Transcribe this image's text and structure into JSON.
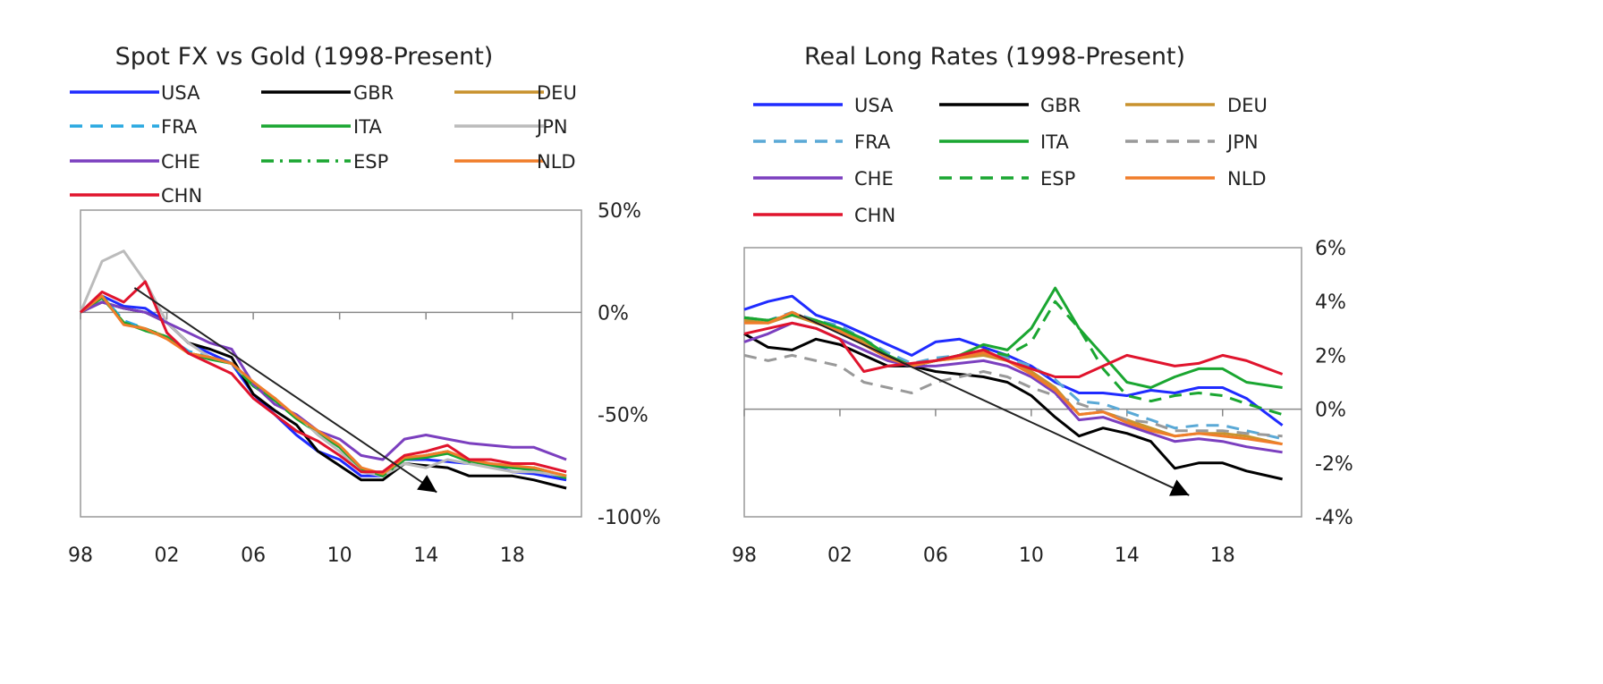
{
  "chart_data": [
    {
      "type": "line",
      "title": "Spot FX vs Gold (1998-Present)",
      "xlabel": "",
      "ylabel": "",
      "xlim": [
        1998,
        2021.2
      ],
      "ylim": [
        -100,
        50
      ],
      "x_tick_labels": [
        "98",
        "02",
        "06",
        "10",
        "14",
        "18"
      ],
      "x_tick_values": [
        1998,
        2002,
        2006,
        2010,
        2014,
        2018
      ],
      "y_tick_labels": [
        "50%",
        "0%",
        "-50%",
        "-100%"
      ],
      "y_tick_values": [
        50,
        0,
        -50,
        -100
      ],
      "legend_position": "top",
      "x": [
        1998,
        1999,
        2000,
        2001,
        2002,
        2003,
        2004,
        2005,
        2006,
        2007,
        2008,
        2009,
        2010,
        2011,
        2012,
        2013,
        2014,
        2015,
        2016,
        2017,
        2018,
        2019,
        2020.5
      ],
      "series": [
        {
          "name": "USA",
          "color": "#1f2bff",
          "style": "solid",
          "values": [
            0,
            8,
            3,
            2,
            -5,
            -15,
            -20,
            -25,
            -40,
            -50,
            -60,
            -68,
            -72,
            -80,
            -80,
            -72,
            -72,
            -73,
            -74,
            -75,
            -78,
            -79,
            -82
          ]
        },
        {
          "name": "GBR",
          "color": "#000000",
          "style": "solid",
          "values": [
            0,
            5,
            2,
            0,
            -5,
            -15,
            -18,
            -22,
            -40,
            -48,
            -55,
            -68,
            -75,
            -82,
            -82,
            -74,
            -75,
            -76,
            -80,
            -80,
            -80,
            -82,
            -86
          ]
        },
        {
          "name": "DEU",
          "color": "#c8922e",
          "style": "solid",
          "values": [
            0,
            8,
            -5,
            -8,
            -12,
            -20,
            -22,
            -25,
            -35,
            -42,
            -52,
            -58,
            -65,
            -76,
            -80,
            -72,
            -70,
            -68,
            -73,
            -74,
            -76,
            -76,
            -80
          ]
        },
        {
          "name": "FRA",
          "color": "#2aa8e0",
          "style": "dash",
          "values": [
            0,
            8,
            -4,
            -8,
            -12,
            -19,
            -22,
            -25,
            -36,
            -42,
            -52,
            -58,
            -66,
            -76,
            -80,
            -72,
            -70,
            -69,
            -73,
            -74,
            -76,
            -77,
            -80
          ]
        },
        {
          "name": "ITA",
          "color": "#1aa631",
          "style": "solid",
          "values": [
            0,
            7,
            -5,
            -9,
            -12,
            -20,
            -23,
            -25,
            -36,
            -43,
            -52,
            -59,
            -66,
            -77,
            -80,
            -72,
            -71,
            -69,
            -73,
            -75,
            -76,
            -77,
            -81
          ]
        },
        {
          "name": "JPN",
          "color": "#bbbbbb",
          "style": "solid",
          "values": [
            0,
            25,
            30,
            15,
            -5,
            -15,
            -22,
            -25,
            -35,
            -45,
            -50,
            -60,
            -68,
            -78,
            -80,
            -74,
            -76,
            -72,
            -74,
            -76,
            -78,
            -78,
            -80
          ]
        },
        {
          "name": "CHE",
          "color": "#7b3fbf",
          "style": "solid",
          "values": [
            0,
            5,
            2,
            0,
            -5,
            -10,
            -15,
            -18,
            -35,
            -45,
            -50,
            -58,
            -62,
            -70,
            -72,
            -62,
            -60,
            -62,
            -64,
            -65,
            -66,
            -66,
            -72
          ]
        },
        {
          "name": "ESP",
          "color": "#1aa631",
          "style": "dashdot",
          "values": [
            0,
            8,
            -5,
            -8,
            -12,
            -20,
            -22,
            -25,
            -35,
            -43,
            -52,
            -58,
            -65,
            -76,
            -80,
            -72,
            -70,
            -68,
            -73,
            -74,
            -76,
            -76,
            -80
          ]
        },
        {
          "name": "NLD",
          "color": "#f07d2a",
          "style": "solid",
          "values": [
            0,
            8,
            -6,
            -8,
            -13,
            -20,
            -22,
            -25,
            -34,
            -42,
            -51,
            -58,
            -65,
            -76,
            -79,
            -71,
            -70,
            -68,
            -72,
            -74,
            -75,
            -76,
            -80
          ]
        },
        {
          "name": "CHN",
          "color": "#e0142d",
          "style": "solid",
          "values": [
            0,
            10,
            5,
            15,
            -10,
            -20,
            -25,
            -30,
            -42,
            -50,
            -58,
            -63,
            -70,
            -78,
            -78,
            -70,
            -68,
            -65,
            -72,
            -72,
            -74,
            -74,
            -78
          ]
        }
      ],
      "trend_arrow": {
        "from": [
          2000.5,
          12
        ],
        "to": [
          2014.5,
          -88
        ]
      }
    },
    {
      "type": "line",
      "title": "Real Long Rates (1998-Present)",
      "xlabel": "",
      "ylabel": "",
      "xlim": [
        1998,
        2021.3
      ],
      "ylim": [
        -4,
        6
      ],
      "x_tick_labels": [
        "98",
        "02",
        "06",
        "10",
        "14",
        "18"
      ],
      "x_tick_values": [
        1998,
        2002,
        2006,
        2010,
        2014,
        2018
      ],
      "y_tick_labels": [
        "6%",
        "4%",
        "2%",
        "0%",
        "-2%",
        "-4%"
      ],
      "y_tick_values": [
        6,
        4,
        2,
        0,
        -2,
        -4
      ],
      "legend_position": "top",
      "x": [
        1998,
        1999,
        2000,
        2001,
        2002,
        2003,
        2004,
        2005,
        2006,
        2007,
        2008,
        2009,
        2010,
        2011,
        2012,
        2013,
        2014,
        2015,
        2016,
        2017,
        2018,
        2019,
        2020.5
      ],
      "series": [
        {
          "name": "USA",
          "color": "#1f2bff",
          "style": "solid",
          "values": [
            3.7,
            4.0,
            4.2,
            3.5,
            3.2,
            2.8,
            2.4,
            2.0,
            2.5,
            2.6,
            2.3,
            2.0,
            1.6,
            1.0,
            0.6,
            0.6,
            0.5,
            0.7,
            0.6,
            0.8,
            0.8,
            0.4,
            -0.6
          ]
        },
        {
          "name": "GBR",
          "color": "#000000",
          "style": "solid",
          "values": [
            2.8,
            2.3,
            2.2,
            2.6,
            2.4,
            2.0,
            1.6,
            1.6,
            1.4,
            1.3,
            1.2,
            1.0,
            0.5,
            -0.3,
            -1.0,
            -0.7,
            -0.9,
            -1.2,
            -2.2,
            -2.0,
            -2.0,
            -2.3,
            -2.6
          ]
        },
        {
          "name": "DEU",
          "color": "#c8922e",
          "style": "solid",
          "values": [
            3.3,
            3.2,
            3.5,
            3.2,
            3.0,
            2.5,
            2.0,
            1.6,
            1.8,
            1.9,
            2.0,
            1.8,
            1.4,
            0.8,
            -0.2,
            -0.1,
            -0.4,
            -0.7,
            -1.0,
            -0.9,
            -0.9,
            -1.0,
            -1.3
          ]
        },
        {
          "name": "FRA",
          "color": "#5aa9d6",
          "style": "dash",
          "values": [
            3.4,
            3.3,
            3.6,
            3.3,
            3.1,
            2.6,
            2.1,
            1.7,
            1.9,
            2.0,
            2.1,
            1.9,
            1.6,
            1.1,
            0.3,
            0.2,
            -0.1,
            -0.4,
            -0.7,
            -0.6,
            -0.6,
            -0.8,
            -1.1
          ]
        },
        {
          "name": "ITA",
          "color": "#1aa631",
          "style": "solid",
          "values": [
            3.4,
            3.3,
            3.5,
            3.3,
            3.0,
            2.6,
            2.0,
            1.6,
            1.8,
            2.0,
            2.4,
            2.2,
            3.0,
            4.5,
            3.0,
            2.0,
            1.0,
            0.8,
            1.2,
            1.5,
            1.5,
            1.0,
            0.8
          ]
        },
        {
          "name": "JPN",
          "color": "#999999",
          "style": "dash",
          "values": [
            2.0,
            1.8,
            2.0,
            1.8,
            1.6,
            1.0,
            0.8,
            0.6,
            1.0,
            1.2,
            1.4,
            1.2,
            0.8,
            0.5,
            0.2,
            -0.1,
            -0.4,
            -0.5,
            -0.8,
            -0.8,
            -0.8,
            -0.9,
            -1.0
          ]
        },
        {
          "name": "CHE",
          "color": "#7b3fbf",
          "style": "solid",
          "values": [
            2.5,
            2.8,
            3.2,
            3.0,
            2.6,
            2.2,
            1.8,
            1.6,
            1.6,
            1.7,
            1.8,
            1.6,
            1.2,
            0.6,
            -0.4,
            -0.3,
            -0.6,
            -0.9,
            -1.2,
            -1.1,
            -1.2,
            -1.4,
            -1.6
          ]
        },
        {
          "name": "ESP",
          "color": "#1aa631",
          "style": "dash",
          "values": [
            3.4,
            3.3,
            3.5,
            3.3,
            3.0,
            2.6,
            2.0,
            1.6,
            1.8,
            2.0,
            2.2,
            2.0,
            2.5,
            4.0,
            3.0,
            1.5,
            0.5,
            0.3,
            0.5,
            0.6,
            0.5,
            0.2,
            -0.2
          ]
        },
        {
          "name": "NLD",
          "color": "#f07d2a",
          "style": "solid",
          "values": [
            3.2,
            3.2,
            3.6,
            3.2,
            2.9,
            2.4,
            1.9,
            1.6,
            1.8,
            1.9,
            2.1,
            1.8,
            1.3,
            0.7,
            -0.2,
            -0.1,
            -0.5,
            -0.8,
            -1.0,
            -0.9,
            -1.0,
            -1.1,
            -1.3
          ]
        },
        {
          "name": "CHN",
          "color": "#e0142d",
          "style": "solid",
          "values": [
            2.8,
            3.0,
            3.2,
            3.0,
            2.6,
            1.4,
            1.6,
            1.7,
            1.8,
            2.0,
            2.2,
            1.8,
            1.5,
            1.2,
            1.2,
            1.6,
            2.0,
            1.8,
            1.6,
            1.7,
            2.0,
            1.8,
            1.3
          ]
        }
      ],
      "trend_arrow": {
        "from": [
          2000.3,
          3.5
        ],
        "to": [
          2016.6,
          -3.2
        ]
      }
    }
  ]
}
